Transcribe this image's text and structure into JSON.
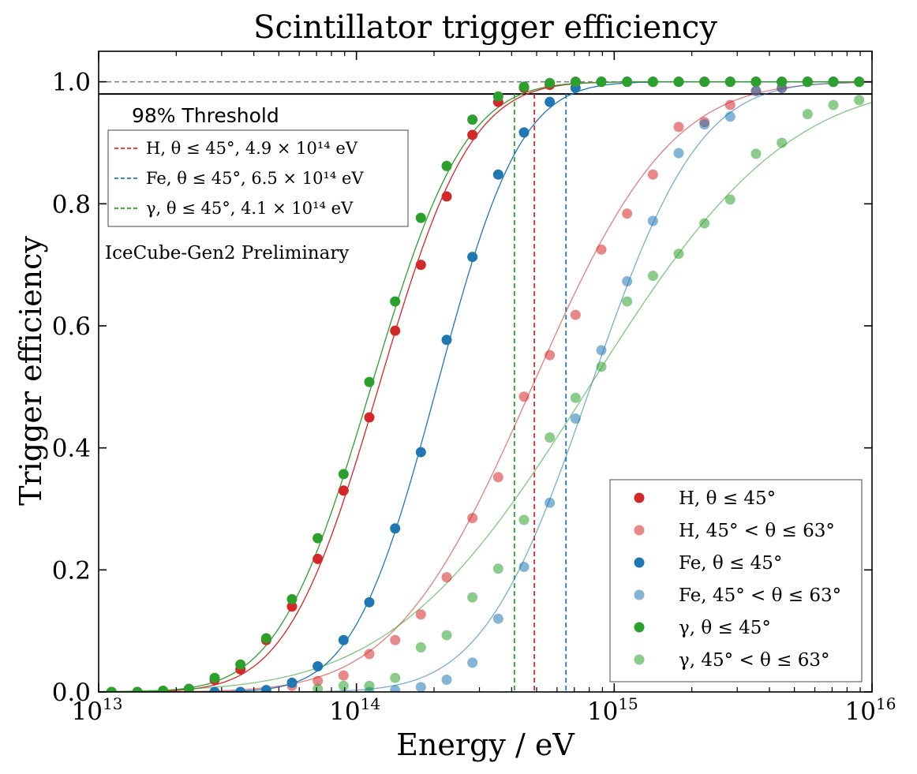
{
  "chart_data": {
    "type": "scatter",
    "title": "Scintillator trigger efficiency",
    "xlabel": "Energy / eV",
    "ylabel": "Trigger efficiency",
    "xscale": "log",
    "xlim": [
      10000000000000.0,
      1e+16
    ],
    "ylim": [
      0.0,
      1.05
    ],
    "x_ticks": [
      {
        "value": 10000000000000.0,
        "base": "10",
        "exp": "13"
      },
      {
        "value": 100000000000000.0,
        "base": "10",
        "exp": "14"
      },
      {
        "value": 1000000000000000.0,
        "base": "10",
        "exp": "15"
      },
      {
        "value": 1e+16,
        "base": "10",
        "exp": "16"
      }
    ],
    "y_ticks": [
      {
        "value": 0.0,
        "label": "0.0"
      },
      {
        "value": 0.2,
        "label": "0.2"
      },
      {
        "value": 0.4,
        "label": "0.4"
      },
      {
        "value": 0.6,
        "label": "0.6"
      },
      {
        "value": 0.8,
        "label": "0.8"
      },
      {
        "value": 1.0,
        "label": "1.0"
      }
    ],
    "reference_lines": [
      {
        "value": 1.0,
        "style": "dashed",
        "color": "#808080"
      },
      {
        "value": 0.98,
        "style": "solid",
        "color": "#000000"
      }
    ],
    "thresholds": {
      "title": "98% Threshold",
      "items": [
        {
          "label": "H, θ ≤ 45°, 4.9 × 10¹⁴ eV",
          "energy": 490000000000000.0,
          "color": "#d62728"
        },
        {
          "label": "Fe, θ ≤ 45°, 6.5 × 10¹⁴ eV",
          "energy": 650000000000000.0,
          "color": "#1f77b4"
        },
        {
          "label": "γ, θ ≤ 45°, 4.1 × 10¹⁴ eV",
          "energy": 410000000000000.0,
          "color": "#2ca02c"
        }
      ]
    },
    "annotation": {
      "text": "IceCube-Gen2 Preliminary",
      "color": "#e8141b"
    },
    "x": [
      11220000000000.0,
      14130000000000.0,
      17780000000000.0,
      22390000000000.0,
      28180000000000.0,
      35480000000000.0,
      44670000000000.0,
      56230000000000.0,
      70790000000000.0,
      89130000000000.0,
      112200000000000.0,
      141300000000000.0,
      177800000000000.0,
      223900000000000.0,
      281800000000000.0,
      354800000000000.0,
      446700000000000.0,
      562300000000000.0,
      707900000000000.0,
      891300000000000.0,
      1122000000000000.0,
      1413000000000000.0,
      1778000000000000.0,
      2239000000000000.0,
      2818000000000000.0,
      3548000000000000.0,
      4467000000000000.0,
      5623000000000000.0,
      7079000000000000.0,
      8913000000000000.0
    ],
    "series": [
      {
        "name": "H, θ ≤ 45°",
        "color": "#d62728",
        "alpha": 1.0,
        "fit": {
          "center": 122000000000000.0,
          "width": 0.28
        },
        "values": [
          0.0,
          0.0,
          0.0,
          0.005,
          0.02,
          0.037,
          0.085,
          0.14,
          0.218,
          0.33,
          0.45,
          0.592,
          0.7,
          0.812,
          0.913,
          0.967,
          0.99,
          0.995,
          1.0,
          1.0,
          1.0,
          1.0,
          1.0,
          1.0,
          1.0,
          1.0,
          1.0,
          1.0,
          1.0,
          1.0
        ]
      },
      {
        "name": "H, 45° < θ ≤ 63°",
        "color": "#d62728",
        "alpha": 0.55,
        "fit": {
          "center": 480000000000000.0,
          "width": 0.42
        },
        "values": [
          null,
          null,
          null,
          null,
          null,
          null,
          null,
          0.01,
          0.018,
          0.027,
          0.062,
          0.085,
          0.127,
          0.188,
          0.285,
          0.352,
          0.484,
          0.552,
          0.618,
          0.725,
          0.784,
          0.848,
          0.926,
          0.934,
          0.962,
          0.985,
          0.99,
          1.0,
          1.0,
          1.0
        ]
      },
      {
        "name": "Fe, θ ≤ 45°",
        "color": "#1f77b4",
        "alpha": 1.0,
        "fit": {
          "center": 205000000000000.0,
          "width": 0.255
        },
        "values": [
          null,
          null,
          null,
          null,
          0.0,
          0.0,
          0.003,
          0.015,
          0.042,
          0.085,
          0.147,
          0.268,
          0.393,
          0.577,
          0.713,
          0.848,
          0.917,
          0.967,
          0.99,
          1.0,
          1.0,
          1.0,
          1.0,
          1.0,
          1.0,
          1.0,
          1.0,
          1.0,
          1.0,
          1.0
        ]
      },
      {
        "name": "Fe, 45° < θ ≤ 63°",
        "color": "#1f77b4",
        "alpha": 0.55,
        "fit": {
          "center": 810000000000000.0,
          "width": 0.33
        },
        "values": [
          null,
          null,
          null,
          null,
          null,
          null,
          null,
          null,
          null,
          null,
          0.0,
          0.003,
          0.008,
          0.02,
          0.048,
          0.12,
          0.205,
          0.31,
          0.448,
          0.56,
          0.673,
          0.772,
          0.883,
          0.93,
          0.943,
          0.985,
          0.99,
          1.0,
          1.0,
          1.0
        ]
      },
      {
        "name": "γ, θ ≤ 45°",
        "color": "#2ca02c",
        "alpha": 1.0,
        "fit": {
          "center": 114000000000000.0,
          "width": 0.285
        },
        "values": [
          0.0,
          0.0,
          0.002,
          0.005,
          0.023,
          0.045,
          0.088,
          0.152,
          0.252,
          0.357,
          0.508,
          0.64,
          0.777,
          0.862,
          0.938,
          0.976,
          0.992,
          0.998,
          1.0,
          1.0,
          1.0,
          1.0,
          1.0,
          1.0,
          1.0,
          1.0,
          1.0,
          1.0,
          1.0,
          1.0
        ]
      },
      {
        "name": "γ, 45° < θ ≤ 63°",
        "color": "#2ca02c",
        "alpha": 0.55,
        "fit": {
          "center": 800000000000000.0,
          "width": 0.6
        },
        "values": [
          null,
          null,
          null,
          null,
          null,
          null,
          null,
          null,
          0.005,
          0.01,
          0.01,
          0.023,
          0.073,
          0.093,
          0.155,
          0.202,
          0.282,
          0.417,
          0.482,
          0.533,
          0.64,
          0.682,
          0.718,
          0.768,
          0.807,
          0.882,
          0.9,
          0.947,
          0.962,
          0.97
        ]
      }
    ],
    "legend": {
      "placement": "lower-right"
    }
  }
}
